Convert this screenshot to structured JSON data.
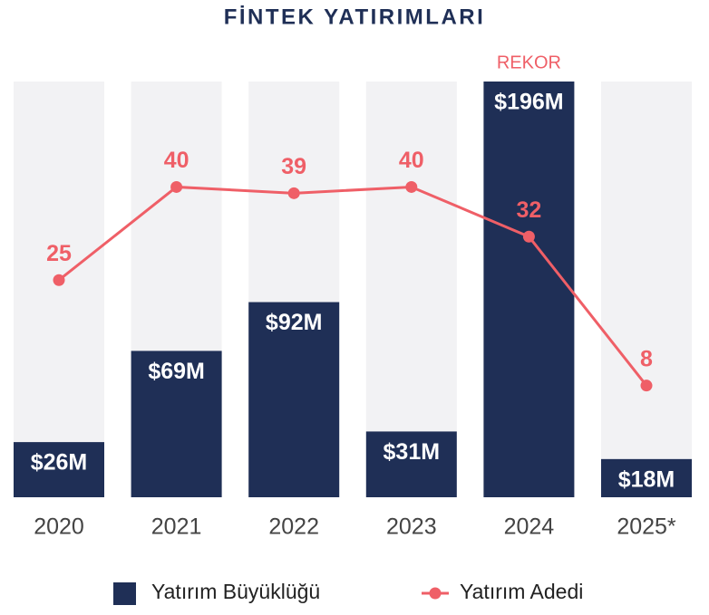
{
  "chart_data": {
    "type": "bar_line",
    "title": "FİNTEK YATIRIMLARI",
    "categories": [
      "2020",
      "2021",
      "2022",
      "2023",
      "2024",
      "2025*"
    ],
    "series": [
      {
        "name": "Yatırım Büyüklüğü",
        "type": "bar",
        "color": "#1f2f56",
        "values": [
          26,
          69,
          92,
          31,
          196,
          18
        ],
        "value_labels": [
          "$26M",
          "$69M",
          "$92M",
          "$31M",
          "$196M",
          "$18M"
        ]
      },
      {
        "name": "Yatırım Adedi",
        "type": "line",
        "axis": "y2",
        "color": "#ef5f67",
        "values": [
          25,
          40,
          39,
          40,
          32,
          8
        ]
      }
    ],
    "ylim": [
      0,
      196
    ],
    "y2lim": [
      -10,
      57
    ],
    "annotations": [
      {
        "text": "REKOR",
        "category": 4
      }
    ],
    "background_color": "#f2f2f4"
  }
}
